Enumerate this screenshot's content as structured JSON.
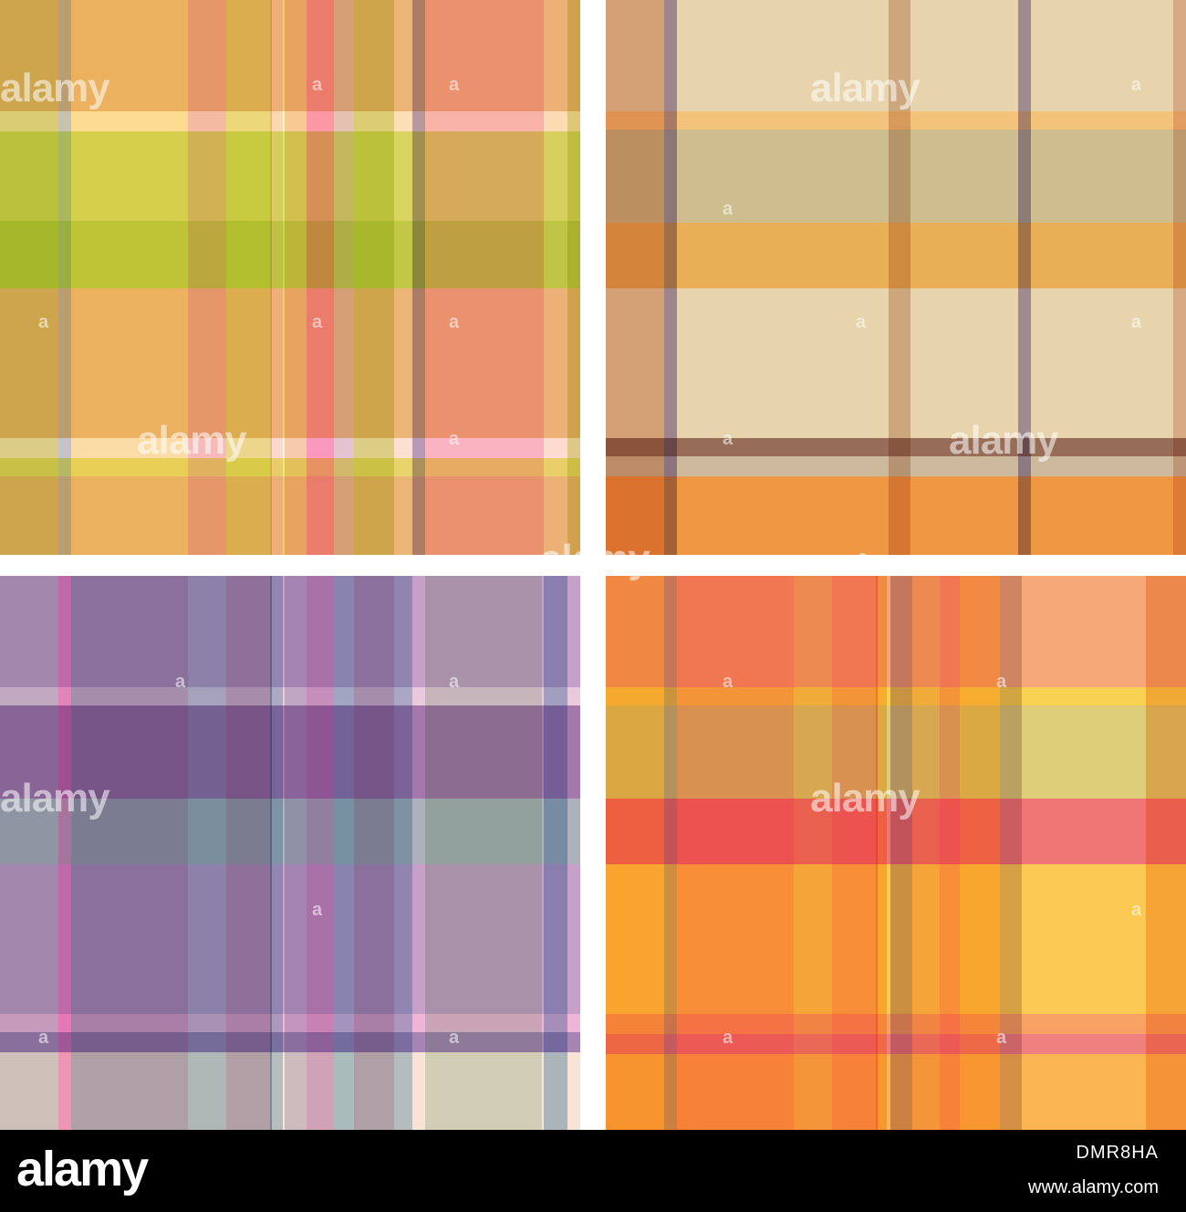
{
  "watermark": "alamy",
  "watermark_mark": "a",
  "footer": {
    "logo": "alamy",
    "image_id": "DMR8HA",
    "url": "www.alamy.com"
  },
  "tiles": [
    {
      "name": "plaid-pink-green",
      "base": "#ecc87e",
      "vertical": [
        {
          "c": "#c8b85a"
        },
        {
          "c": "#a8a8d8"
        },
        {
          "c": "#fdd196"
        },
        {
          "c": "#f29ab8"
        },
        {
          "c": "#e4c866"
        },
        {
          "c": "#ffcce0"
        },
        {
          "c": "#f7b4a0"
        },
        {
          "c": "#fd60c0"
        },
        {
          "c": "#d8a8e0"
        },
        {
          "c": "#ccb856"
        },
        {
          "c": "#ffd8e6"
        },
        {
          "c": "#9060b0"
        },
        {
          "c": "#fc8dc8"
        },
        {
          "c": "#ffd0e4"
        },
        {
          "c": "#d0b060"
        }
      ],
      "horizontal": [
        {
          "c": "#ffffcc"
        },
        {
          "c": "#d4f060"
        },
        {
          "c": "#b8e040"
        },
        {
          "c": "#fffff0"
        },
        {
          "c": "#e8f070"
        }
      ]
    },
    {
      "name": "plaid-beige-stripes",
      "base": "#e7d3ac",
      "vertical": [
        {
          "c": "#dd9b7a"
        },
        {
          "c": "#7c66b0"
        },
        {
          "c": "#d0a890"
        },
        {
          "c": "#8070b8"
        },
        {
          "c": "#e0b0a0"
        }
      ],
      "horizontal": [
        {
          "c": "#f4c072"
        },
        {
          "c": "#c8b88a"
        },
        {
          "c": "#e8a848"
        },
        {
          "c": "#8a5a48"
        },
        {
          "c": "#c8b498"
        },
        {
          "c": "#f08c30"
        }
      ]
    },
    {
      "name": "plaid-lilac-grey",
      "base": "#c6a0c8",
      "vertical": [
        {
          "c": "#b8bec8"
        },
        {
          "c": "#f070c0"
        },
        {
          "c": "#8884a4"
        },
        {
          "c": "#86aec0"
        },
        {
          "c": "#8a82a2"
        },
        {
          "c": "#90bcd0"
        },
        {
          "c": "#b8b8d0"
        },
        {
          "c": "#c088c0"
        },
        {
          "c": "#80b4cc"
        },
        {
          "c": "#8884a4"
        },
        {
          "c": "#90b8d0"
        },
        {
          "c": "#c0d8c0"
        },
        {
          "c": "#80a8c8"
        }
      ],
      "horizontal": [
        {
          "c": "#f0d0e0"
        },
        {
          "c": "#a070a8"
        },
        {
          "c": "#a8b4b8"
        },
        {
          "c": "#f4b8d8"
        },
        {
          "c": "#a080b0"
        },
        {
          "c": "#fff0d8"
        },
        {
          "c": "#b8c0c8"
        }
      ]
    },
    {
      "name": "plaid-orange-coral",
      "base": "#f4a878",
      "vertical": [
        {
          "c": "#fbb244"
        },
        {
          "c": "#b08898"
        },
        {
          "c": "#f88878"
        },
        {
          "c": "#f4b478"
        },
        {
          "c": "#f88878"
        },
        {
          "c": "#fbb648"
        },
        {
          "c": "#b088a4"
        },
        {
          "c": "#f4b478"
        },
        {
          "c": "#f88878"
        },
        {
          "c": "#fbb648"
        },
        {
          "c": "#c0a8b0"
        },
        {
          "c": "#f4b068"
        }
      ],
      "horizontal": [
        {
          "c": "#f8d84c"
        },
        {
          "c": "#d8d478"
        },
        {
          "c": "#ee6c74"
        },
        {
          "c": "#fdd04c"
        },
        {
          "c": "#f8a060"
        },
        {
          "c": "#ee7880"
        },
        {
          "c": "#fbb84e"
        }
      ]
    }
  ]
}
